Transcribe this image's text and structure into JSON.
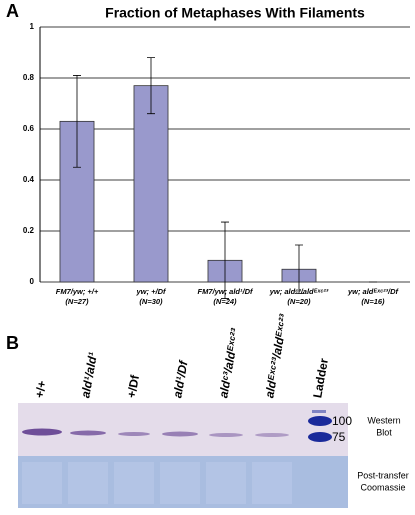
{
  "panel_labels": [
    "A",
    "B"
  ],
  "chart_data": {
    "type": "bar",
    "title": "Fraction of Metaphases With Filaments",
    "categories": [
      "FM7/yw; +/+",
      "yw; +/Df",
      "FM7/yw; ald¹/Df",
      "yw; aldᶜ³/aldᴱˣᶜ²³",
      "yw; aldᴱˣᶜ²³/Df"
    ],
    "sample_sizes": [
      "(N=27)",
      "(N=30)",
      "(N=24)",
      "(N=20)",
      "(N=16)"
    ],
    "values": [
      0.63,
      0.77,
      0.085,
      0.05,
      0
    ],
    "errors": [
      0.18,
      0.11,
      0.15,
      0.095,
      0
    ],
    "color": "#9999cc",
    "ylim": [
      0,
      1
    ],
    "yticks": [
      0,
      0.2,
      0.4,
      0.6,
      0.8,
      1
    ],
    "grid": true
  },
  "blot": {
    "lanes": [
      "+/+",
      "ald¹/ald¹",
      "+/Df",
      "ald¹/Df",
      "aldᶜ³/aldᴱˣᶜ²³",
      "aldᴱˣᶜ²³/aldᴱˣᶜ²³",
      "Ladder"
    ],
    "markers": [
      100,
      75
    ],
    "western_label": [
      "Western",
      "Blot"
    ],
    "coomassie_label": [
      "Post-transfer",
      "Coomassie"
    ]
  }
}
